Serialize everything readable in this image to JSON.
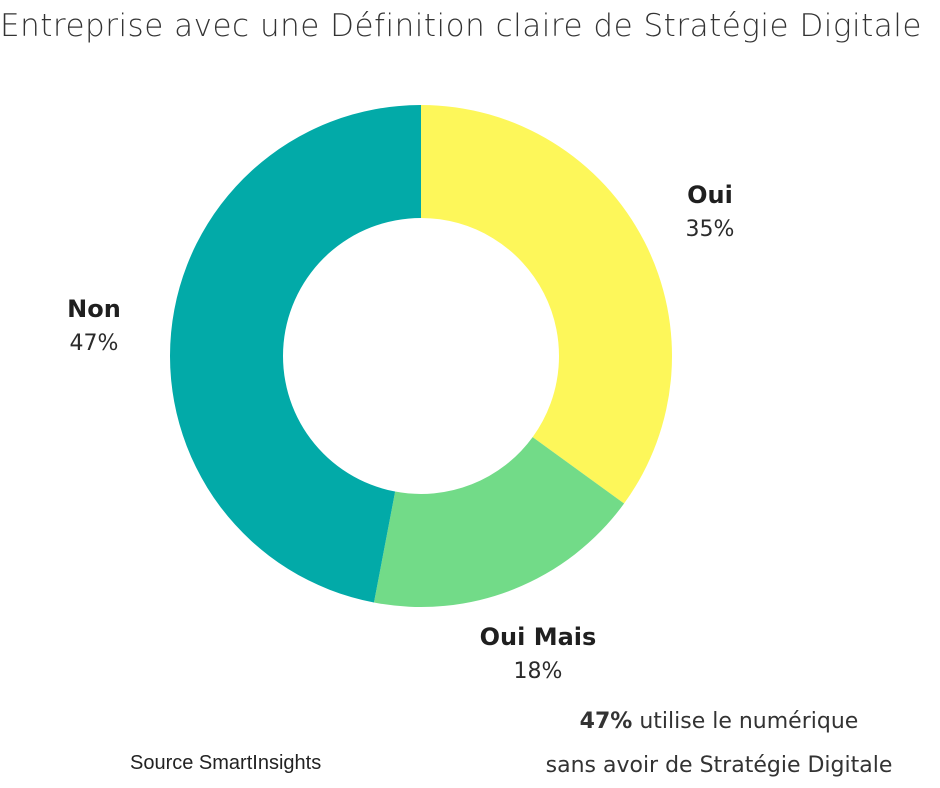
{
  "chart_data": {
    "type": "pie",
    "title": "Entreprise avec une Définition claire de Stratégie Digitale",
    "donut": true,
    "slices": [
      {
        "label": "Oui",
        "value": 35,
        "value_label": "35%",
        "color": "#fdf75a"
      },
      {
        "label": "Oui Mais",
        "value": 18,
        "value_label": "18%",
        "color": "#72db88"
      },
      {
        "label": "Non",
        "value": 47,
        "value_label": "47%",
        "color": "#02aaa8"
      }
    ],
    "start_angle_deg": 0,
    "direction": "clockwise"
  },
  "footnote": {
    "highlight": "47%",
    "line1": "utilise le numérique",
    "line2": "sans avoir de Stratégie Digitale"
  },
  "source": "Source SmartInsights"
}
